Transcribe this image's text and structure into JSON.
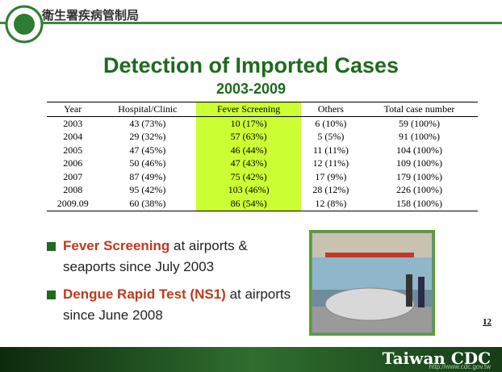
{
  "header": {
    "org": "衛生署疾病管制局",
    "title": "Detection of Imported Cases",
    "subtitle": "2003-2009"
  },
  "table": {
    "columns": [
      "Year",
      "Hospital/Clinic",
      "Fever Screening",
      "Others",
      "Total case number"
    ],
    "rows": [
      [
        "2003",
        "43 (73%)",
        "10 (17%)",
        "6 (10%)",
        "59 (100%)"
      ],
      [
        "2004",
        "29 (32%)",
        "57 (63%)",
        "5 (5%)",
        "91 (100%)"
      ],
      [
        "2005",
        "47 (45%)",
        "46 (44%)",
        "11 (11%)",
        "104 (100%)"
      ],
      [
        "2006",
        "50 (46%)",
        "47 (43%)",
        "12 (11%)",
        "109 (100%)"
      ],
      [
        "2007",
        "87 (49%)",
        "75 (42%)",
        "17 (9%)",
        "179 (100%)"
      ],
      [
        "2008",
        "95 (42%)",
        "103 (46%)",
        "28 (12%)",
        "226 (100%)"
      ],
      [
        "2009.09",
        "60 (38%)",
        "86 (54%)",
        "12 (8%)",
        "158 (100%)"
      ]
    ]
  },
  "bullets": [
    {
      "bold": "Fever Screening",
      "text": "at airports & seaports since July 2003"
    },
    {
      "bold": "Dengue Rapid Test (NS1)",
      "text": "at airports since June 2008"
    }
  ],
  "page_number": "12",
  "footer": {
    "brand": "Taiwan CDC",
    "url": "http://www.cdc.gov.tw"
  }
}
